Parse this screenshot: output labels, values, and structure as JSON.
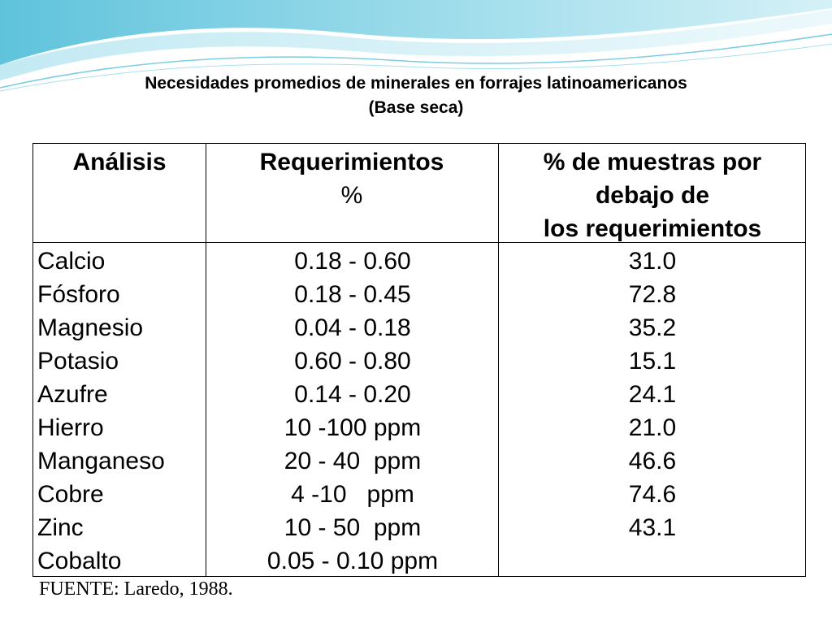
{
  "title": {
    "line1": "Necesidades promedios de minerales en forrajes latinoamericanos",
    "line2": "(Base seca)"
  },
  "table": {
    "headers": {
      "col1": "Análisis",
      "col2_line1": "Requerimientos",
      "col2_line2": "%",
      "col3_line1": "% de muestras por",
      "col3_line2": "debajo de",
      "col3_line3": "los requerimientos"
    },
    "rows": [
      {
        "analisis": "Calcio",
        "requerimientos": "0.18 - 0.60",
        "porcentaje": "31.0"
      },
      {
        "analisis": "Fósforo",
        "requerimientos": "0.18 - 0.45",
        "porcentaje": "72.8"
      },
      {
        "analisis": "Magnesio",
        "requerimientos": "0.04 - 0.18",
        "porcentaje": "35.2"
      },
      {
        "analisis": "Potasio",
        "requerimientos": "0.60 - 0.80",
        "porcentaje": "15.1"
      },
      {
        "analisis": "Azufre",
        "requerimientos": "0.14 - 0.20",
        "porcentaje": "24.1"
      },
      {
        "analisis": "Hierro",
        "requerimientos": "10 -100 ppm",
        "porcentaje": "21.0"
      },
      {
        "analisis": "Manganeso",
        "requerimientos": "20 - 40  ppm",
        "porcentaje": "46.6"
      },
      {
        "analisis": "Cobre",
        "requerimientos": "4 -10   ppm",
        "porcentaje": "74.6"
      },
      {
        "analisis": "Zinc",
        "requerimientos": "10 - 50  ppm",
        "porcentaje": "43.1"
      },
      {
        "analisis": "Cobalto",
        "requerimientos": "0.05 - 0.10 ppm",
        "porcentaje": ""
      }
    ]
  },
  "source": "FUENTE: Laredo, 1988.",
  "colors": {
    "wave_light": "#c6ecf4",
    "wave_mid": "#8fd3e6",
    "wave_dark": "#4fb8d3"
  }
}
